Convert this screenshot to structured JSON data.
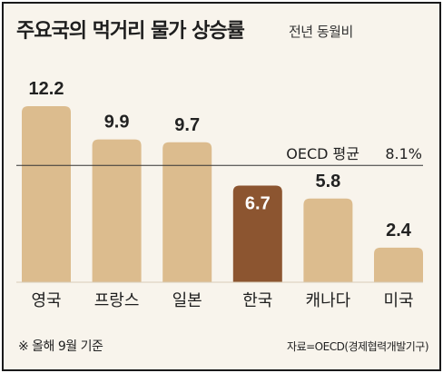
{
  "header": {
    "title": "주요국의 먹거리 물가 상승률",
    "subtitle": "전년 동월비"
  },
  "footer": {
    "note": "※ 올해 9월 기준",
    "source": "자료=OECD(경제협력개발기구)"
  },
  "colors": {
    "bar": "#dcbc8e",
    "highlight": "#8c5530",
    "background": "#f8f4ec"
  },
  "chart_data": {
    "type": "bar",
    "categories": [
      "영국",
      "프랑스",
      "일본",
      "한국",
      "캐나다",
      "미국"
    ],
    "values": [
      12.2,
      9.9,
      9.7,
      6.7,
      5.8,
      2.4
    ],
    "value_labels": [
      "12.2",
      "9.9",
      "9.7",
      "6.7",
      "5.8",
      "2.4"
    ],
    "highlight_category": "한국",
    "reference_line": {
      "label": "OECD 평균",
      "value": 8.1,
      "value_label": "8.1%"
    },
    "ylim": [
      0,
      12.2
    ],
    "grid": false
  }
}
